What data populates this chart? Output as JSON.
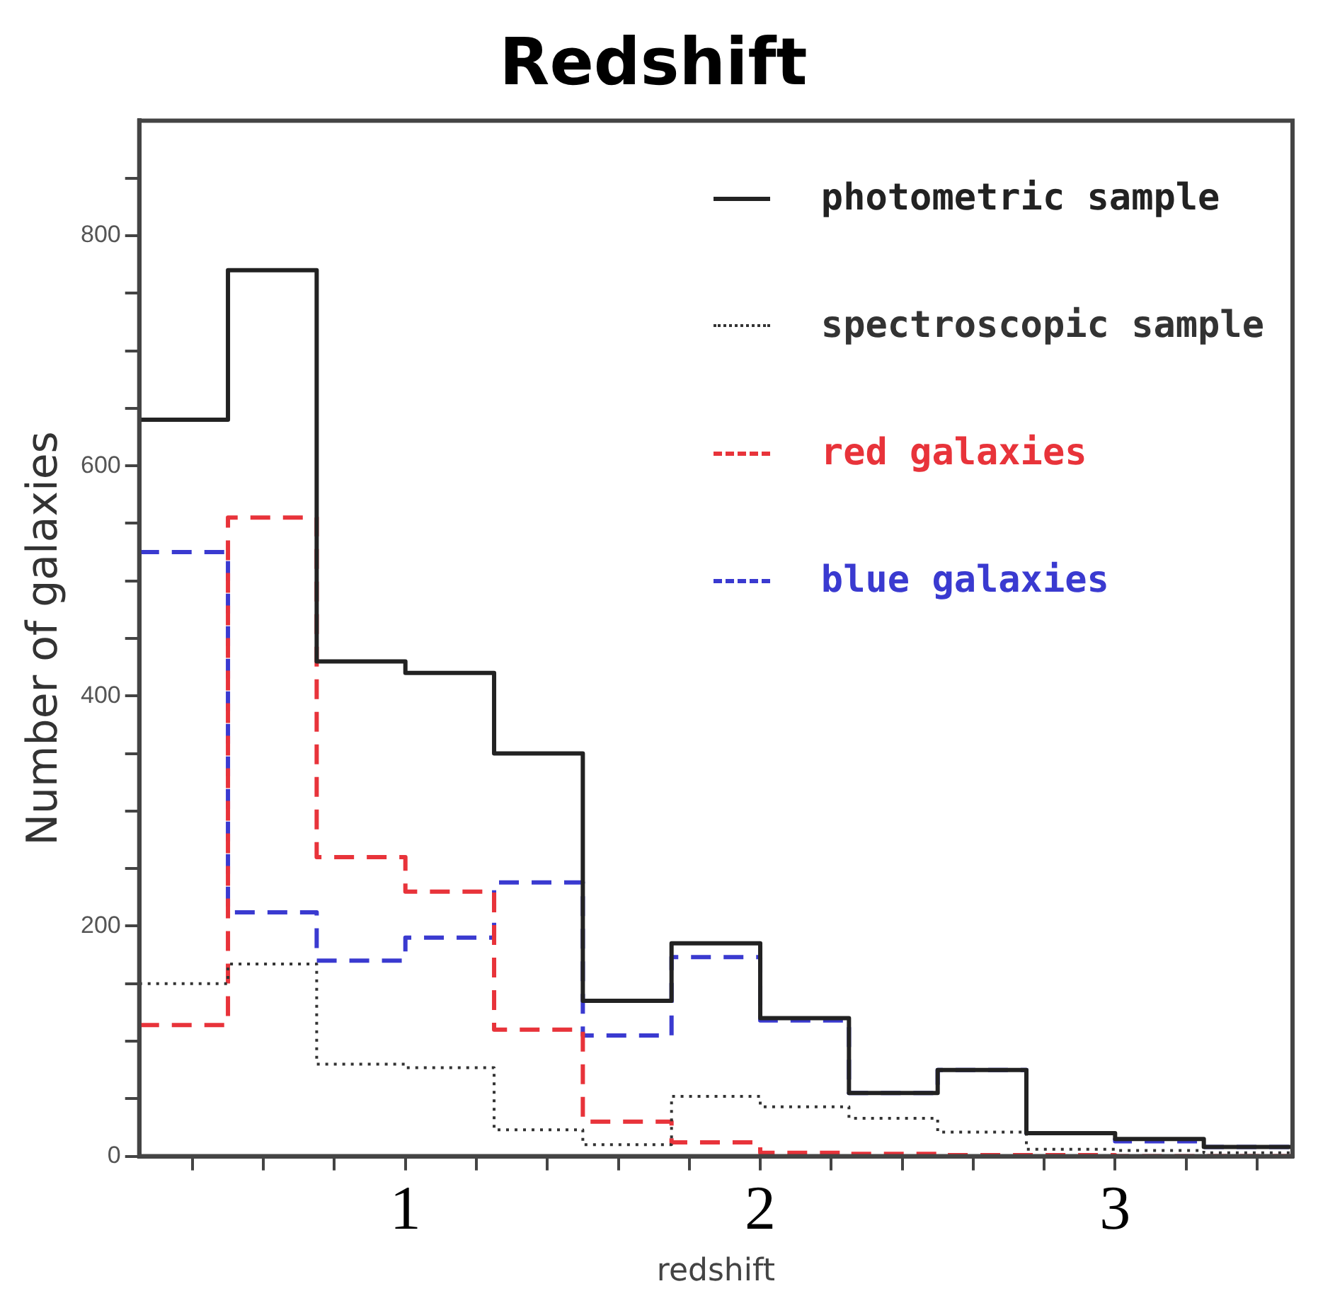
{
  "chart_data": {
    "type": "histogram",
    "title": "Redshift",
    "xlabel": "redshift",
    "ylabel": "Number of galaxies",
    "bins": [
      0.25,
      0.5,
      0.75,
      1,
      1.25,
      1.5,
      1.75,
      2,
      2.25,
      2.5,
      2.75,
      3,
      3.25,
      3.5
    ],
    "series": [
      {
        "name": "photometric sample",
        "color": "#222222",
        "line_style": "solid",
        "values": [
          640,
          770,
          430,
          420,
          350,
          135,
          185,
          120,
          55,
          75,
          20,
          15,
          8
        ]
      },
      {
        "name": "spectroscopic sample",
        "color": "#333333",
        "line_style": "dotted",
        "values": [
          150,
          167,
          80,
          77,
          23,
          10,
          52,
          43,
          33,
          21,
          6,
          5,
          3
        ]
      },
      {
        "name": "red galaxies",
        "color": "#e8333a",
        "line_style": "dashed",
        "values": [
          114,
          555,
          260,
          230,
          110,
          30,
          12,
          3,
          2,
          1,
          1,
          0,
          0
        ]
      },
      {
        "name": "blue galaxies",
        "color": "#3a3ad0",
        "line_style": "dashed",
        "values": [
          525,
          212,
          170,
          190,
          238,
          105,
          173,
          118,
          55,
          75,
          20,
          13,
          8
        ]
      }
    ],
    "xlim": [
      0.25,
      3.5
    ],
    "xticks": [
      {
        "value": 0.4,
        "label": null
      },
      {
        "value": 0.6,
        "label": null
      },
      {
        "value": 0.8,
        "label": null
      },
      1,
      {
        "value": 1.2,
        "label": null
      },
      {
        "value": 1.4,
        "label": null
      },
      {
        "value": 1.6,
        "label": null
      },
      {
        "value": 1.8,
        "label": null
      },
      2,
      {
        "value": 2.2,
        "label": null
      },
      {
        "value": 2.4,
        "label": null
      },
      {
        "value": 2.6,
        "label": null
      },
      {
        "value": 2.8,
        "label": null
      },
      3,
      {
        "value": 3.2,
        "label": null
      },
      {
        "value": 3.4,
        "label": null
      }
    ],
    "ylim": [
      0,
      900
    ],
    "yticks": [
      0,
      {
        "value": 50,
        "label": null
      },
      {
        "value": 100,
        "label": null
      },
      {
        "value": 150,
        "label": null
      },
      200,
      {
        "value": 250,
        "label": null
      },
      {
        "value": 300,
        "label": null
      },
      {
        "value": 350,
        "label": null
      },
      400,
      {
        "value": 450,
        "label": null
      },
      {
        "value": 500,
        "label": null
      },
      {
        "value": 550,
        "label": null
      },
      600,
      {
        "value": 650,
        "label": null
      },
      {
        "value": 700,
        "label": null
      },
      {
        "value": 750,
        "label": null
      },
      800,
      {
        "value": 850,
        "label": null
      }
    ],
    "grid": false,
    "legend": "top right"
  }
}
